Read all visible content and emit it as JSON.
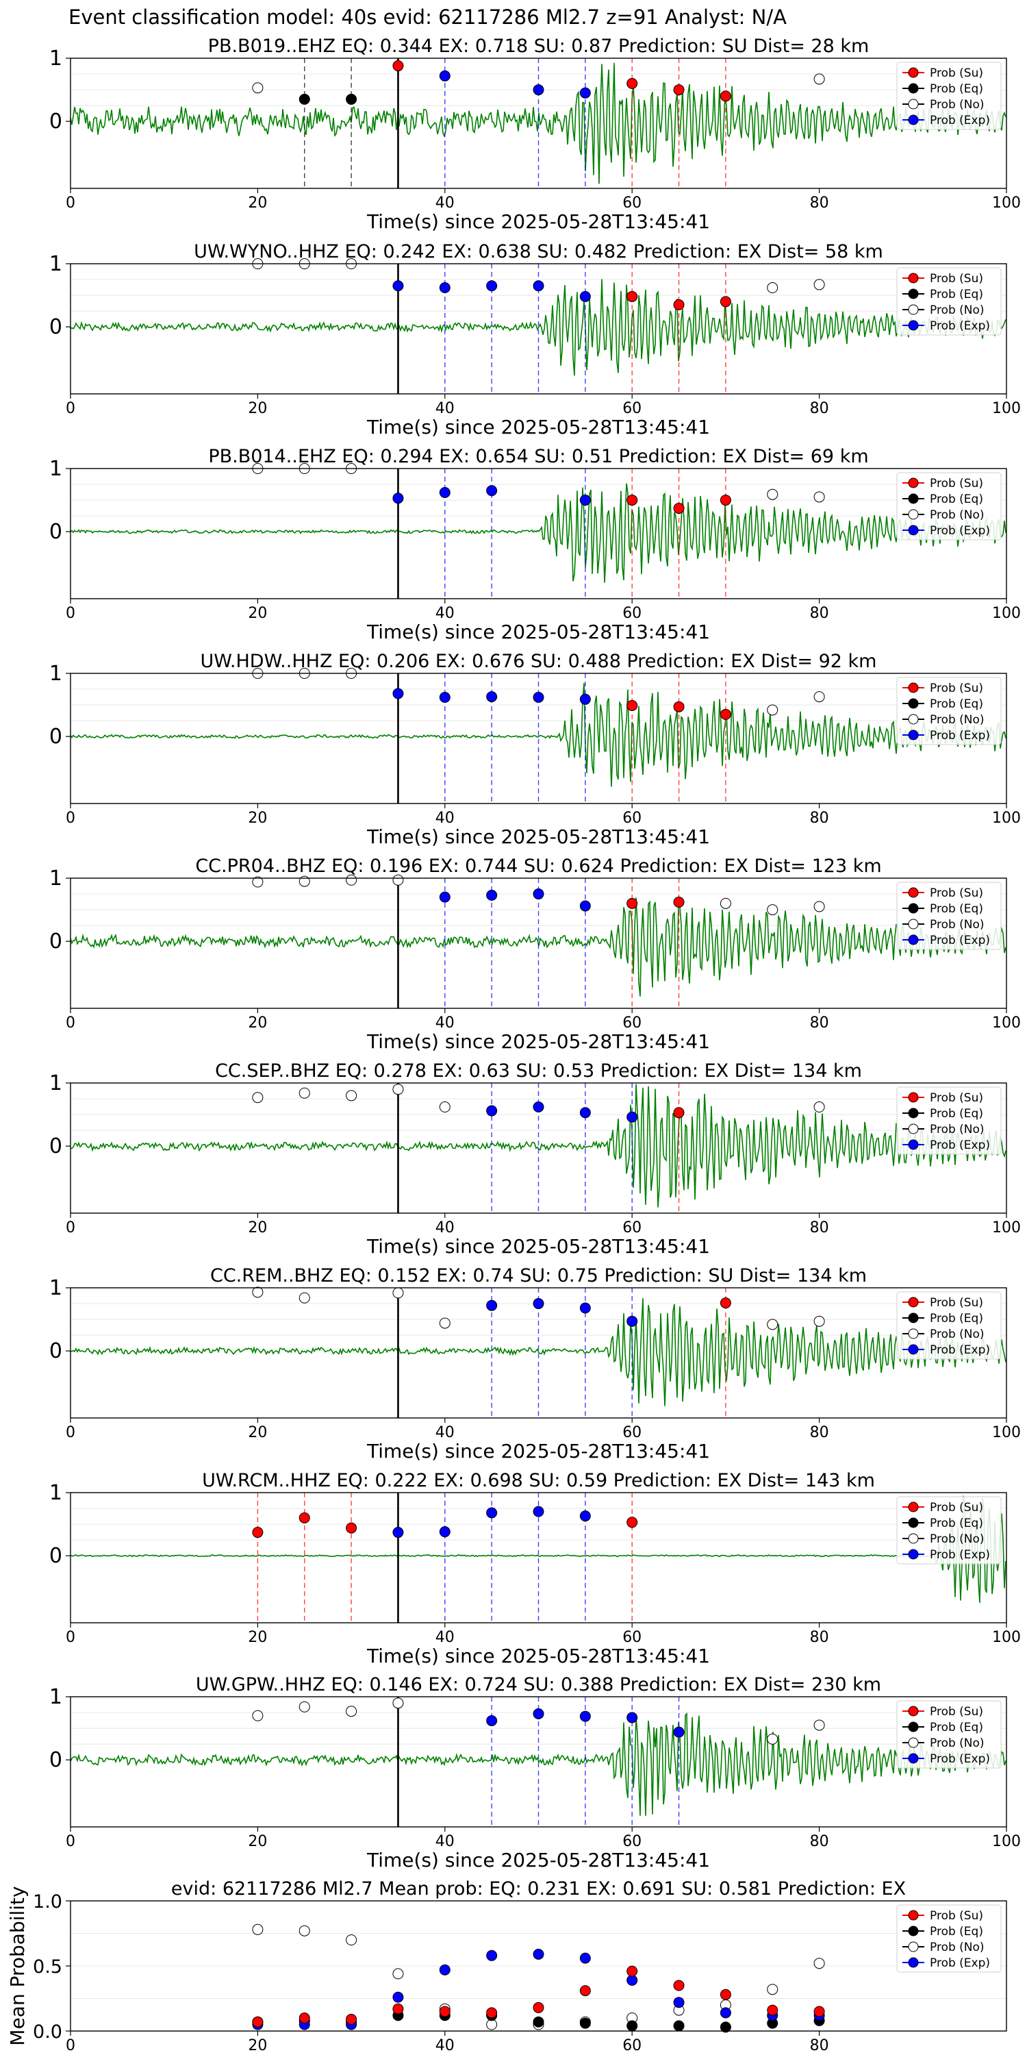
{
  "figure_title": "Event classification model: 40s evid: 62117286 Ml2.7 z=91 Analyst: N/A",
  "legend_entries": [
    {
      "label": "Prob (Su)",
      "color": "#ff0000",
      "fill": "#ff0000"
    },
    {
      "label": "Prob (Eq)",
      "color": "#000000",
      "fill": "#000000"
    },
    {
      "label": "Prob (No)",
      "color": "#000000",
      "fill": "#ffffff"
    },
    {
      "label": "Prob (Exp)",
      "color": "#0000ff",
      "fill": "#0000ff"
    }
  ],
  "colors": {
    "waveform": "#008000",
    "su": "#ff0000",
    "eq": "#000000",
    "no": "#ffffff",
    "exp": "#0000ff",
    "pick": "#000000"
  },
  "chart_data": [
    {
      "type": "line",
      "title": "PB.B019..EHZ   EQ: 0.344  EX: 0.718  SU: 0.87   Prediction: SU    Dist= 28 km",
      "xlabel": "Time(s) since 2025-05-28T13:45:41",
      "xlim": [
        0,
        100
      ],
      "xticks": [
        "0",
        "20",
        "40",
        "60",
        "80",
        "100"
      ],
      "yticks": [
        "0",
        "1"
      ],
      "pick": 35,
      "onset": 52,
      "amp": 0.9,
      "noise": 0.18,
      "su": [
        [
          60,
          0.6
        ],
        [
          65,
          0.5
        ],
        [
          70,
          0.4
        ],
        [
          35,
          0.88
        ]
      ],
      "eq": [
        [
          25,
          0.35
        ],
        [
          30,
          0.35
        ]
      ],
      "no": [
        [
          20,
          0.53
        ],
        [
          80,
          0.67
        ]
      ],
      "exp": [
        [
          40,
          0.72
        ],
        [
          50,
          0.5
        ],
        [
          55,
          0.45
        ]
      ],
      "vlines": [
        {
          "x": 25,
          "c": "eq"
        },
        {
          "x": 30,
          "c": "eq"
        },
        {
          "x": 40,
          "c": "exp"
        },
        {
          "x": 50,
          "c": "exp"
        },
        {
          "x": 55,
          "c": "exp"
        },
        {
          "x": 60,
          "c": "su"
        },
        {
          "x": 65,
          "c": "su"
        },
        {
          "x": 70,
          "c": "su"
        }
      ]
    },
    {
      "type": "line",
      "title": "UW.WYNO..HHZ   EQ: 0.242  EX: 0.638  SU: 0.482   Prediction: EX    Dist= 58 km",
      "xlabel": "Time(s) since 2025-05-28T13:45:41",
      "xlim": [
        0,
        100
      ],
      "xticks": [
        "0",
        "20",
        "40",
        "60",
        "80",
        "100"
      ],
      "yticks": [
        "0",
        "1"
      ],
      "pick": 35,
      "onset": 50,
      "amp": 0.8,
      "noise": 0.05,
      "su": [
        [
          60,
          0.48
        ],
        [
          65,
          0.35
        ],
        [
          70,
          0.4
        ]
      ],
      "eq": [],
      "no": [
        [
          20,
          1.0
        ],
        [
          25,
          1.0
        ],
        [
          30,
          1.0
        ],
        [
          75,
          0.62
        ],
        [
          80,
          0.67
        ]
      ],
      "exp": [
        [
          35,
          0.65
        ],
        [
          40,
          0.62
        ],
        [
          45,
          0.65
        ],
        [
          50,
          0.65
        ],
        [
          55,
          0.48
        ]
      ],
      "vlines": [
        {
          "x": 40,
          "c": "exp"
        },
        {
          "x": 45,
          "c": "exp"
        },
        {
          "x": 50,
          "c": "exp"
        },
        {
          "x": 55,
          "c": "exp"
        },
        {
          "x": 60,
          "c": "su"
        },
        {
          "x": 65,
          "c": "su"
        },
        {
          "x": 70,
          "c": "su"
        }
      ]
    },
    {
      "type": "line",
      "title": "PB.B014..EHZ   EQ: 0.294  EX: 0.654  SU: 0.51   Prediction: EX    Dist= 69 km",
      "xlabel": "Time(s) since 2025-05-28T13:45:41",
      "xlim": [
        0,
        100
      ],
      "xticks": [
        "0",
        "20",
        "40",
        "60",
        "80",
        "100"
      ],
      "yticks": [
        "0",
        "1"
      ],
      "pick": 35,
      "onset": 50,
      "amp": 0.9,
      "noise": 0.02,
      "su": [
        [
          60,
          0.5
        ],
        [
          65,
          0.37
        ],
        [
          70,
          0.5
        ]
      ],
      "eq": [],
      "no": [
        [
          20,
          1.0
        ],
        [
          25,
          1.0
        ],
        [
          30,
          1.0
        ],
        [
          75,
          0.59
        ],
        [
          80,
          0.55
        ]
      ],
      "exp": [
        [
          35,
          0.53
        ],
        [
          40,
          0.62
        ],
        [
          45,
          0.65
        ],
        [
          55,
          0.5
        ]
      ],
      "vlines": [
        {
          "x": 40,
          "c": "exp"
        },
        {
          "x": 45,
          "c": "exp"
        },
        {
          "x": 55,
          "c": "exp"
        },
        {
          "x": 60,
          "c": "su"
        },
        {
          "x": 65,
          "c": "su"
        },
        {
          "x": 70,
          "c": "su"
        }
      ]
    },
    {
      "type": "line",
      "title": "UW.HDW..HHZ   EQ: 0.206  EX: 0.676  SU: 0.488   Prediction: EX    Dist= 92 km",
      "xlabel": "Time(s) since 2025-05-28T13:45:41",
      "xlim": [
        0,
        100
      ],
      "xticks": [
        "0",
        "20",
        "40",
        "60",
        "80",
        "100"
      ],
      "yticks": [
        "0",
        "1"
      ],
      "pick": 35,
      "onset": 52,
      "amp": 0.9,
      "noise": 0.02,
      "su": [
        [
          60,
          0.49
        ],
        [
          65,
          0.47
        ],
        [
          70,
          0.35
        ]
      ],
      "eq": [],
      "no": [
        [
          20,
          1.0
        ],
        [
          25,
          1.0
        ],
        [
          30,
          1.0
        ],
        [
          75,
          0.42
        ],
        [
          80,
          0.63
        ]
      ],
      "exp": [
        [
          35,
          0.68
        ],
        [
          40,
          0.62
        ],
        [
          45,
          0.63
        ],
        [
          50,
          0.62
        ],
        [
          55,
          0.59
        ]
      ],
      "vlines": [
        {
          "x": 40,
          "c": "exp"
        },
        {
          "x": 45,
          "c": "exp"
        },
        {
          "x": 50,
          "c": "exp"
        },
        {
          "x": 55,
          "c": "exp"
        },
        {
          "x": 60,
          "c": "su"
        },
        {
          "x": 65,
          "c": "su"
        },
        {
          "x": 70,
          "c": "su"
        }
      ]
    },
    {
      "type": "line",
      "title": "CC.PR04..BHZ   EQ: 0.196  EX: 0.744  SU: 0.624   Prediction: EX    Dist= 123 km",
      "xlabel": "Time(s) since 2025-05-28T13:45:41",
      "xlim": [
        0,
        100
      ],
      "xticks": [
        "0",
        "20",
        "40",
        "60",
        "80",
        "100"
      ],
      "yticks": [
        "0",
        "1"
      ],
      "pick": 35,
      "onset": 57,
      "amp": 0.8,
      "noise": 0.07,
      "su": [
        [
          60,
          0.6
        ],
        [
          65,
          0.62
        ]
      ],
      "eq": [],
      "no": [
        [
          20,
          0.94
        ],
        [
          25,
          0.95
        ],
        [
          30,
          0.97
        ],
        [
          35,
          0.97
        ],
        [
          70,
          0.6
        ],
        [
          75,
          0.5
        ],
        [
          80,
          0.55
        ]
      ],
      "exp": [
        [
          40,
          0.7
        ],
        [
          45,
          0.73
        ],
        [
          50,
          0.75
        ],
        [
          55,
          0.56
        ]
      ],
      "vlines": [
        {
          "x": 40,
          "c": "exp"
        },
        {
          "x": 45,
          "c": "exp"
        },
        {
          "x": 50,
          "c": "exp"
        },
        {
          "x": 55,
          "c": "exp"
        },
        {
          "x": 60,
          "c": "su"
        },
        {
          "x": 65,
          "c": "su"
        }
      ]
    },
    {
      "type": "line",
      "title": "CC.SEP..BHZ   EQ: 0.278  EX: 0.63  SU: 0.53   Prediction: EX    Dist= 134 km",
      "xlabel": "Time(s) since 2025-05-28T13:45:41",
      "xlim": [
        0,
        100
      ],
      "xticks": [
        "0",
        "20",
        "40",
        "60",
        "80",
        "100"
      ],
      "yticks": [
        "0",
        "1"
      ],
      "pick": 35,
      "onset": 57,
      "amp": 1.0,
      "noise": 0.05,
      "su": [
        [
          65,
          0.53
        ]
      ],
      "eq": [],
      "no": [
        [
          20,
          0.77
        ],
        [
          25,
          0.84
        ],
        [
          30,
          0.8
        ],
        [
          35,
          0.9
        ],
        [
          40,
          0.62
        ],
        [
          80,
          0.62
        ]
      ],
      "exp": [
        [
          45,
          0.56
        ],
        [
          50,
          0.62
        ],
        [
          55,
          0.53
        ],
        [
          60,
          0.46
        ]
      ],
      "vlines": [
        {
          "x": 45,
          "c": "exp"
        },
        {
          "x": 50,
          "c": "exp"
        },
        {
          "x": 55,
          "c": "exp"
        },
        {
          "x": 60,
          "c": "exp"
        },
        {
          "x": 65,
          "c": "su"
        }
      ]
    },
    {
      "type": "line",
      "title": "CC.REM..BHZ   EQ: 0.152  EX: 0.74  SU: 0.75   Prediction: SU    Dist= 134 km",
      "xlabel": "Time(s) since 2025-05-28T13:45:41",
      "xlim": [
        0,
        100
      ],
      "xticks": [
        "0",
        "20",
        "40",
        "60",
        "80",
        "100"
      ],
      "yticks": [
        "0",
        "1"
      ],
      "pick": 35,
      "onset": 57,
      "amp": 0.9,
      "noise": 0.04,
      "su": [
        [
          70,
          0.76
        ]
      ],
      "eq": [],
      "no": [
        [
          20,
          0.93
        ],
        [
          25,
          0.84
        ],
        [
          35,
          0.92
        ],
        [
          40,
          0.44
        ],
        [
          75,
          0.42
        ],
        [
          80,
          0.47
        ]
      ],
      "exp": [
        [
          45,
          0.72
        ],
        [
          50,
          0.75
        ],
        [
          55,
          0.68
        ],
        [
          60,
          0.47
        ]
      ],
      "vlines": [
        {
          "x": 45,
          "c": "exp"
        },
        {
          "x": 50,
          "c": "exp"
        },
        {
          "x": 55,
          "c": "exp"
        },
        {
          "x": 60,
          "c": "exp"
        },
        {
          "x": 70,
          "c": "su"
        }
      ]
    },
    {
      "type": "line",
      "title": "UW.RCM..HHZ   EQ: 0.222  EX: 0.698  SU: 0.59   Prediction: EX    Dist= 143 km",
      "xlabel": "Time(s) since 2025-05-28T13:45:41",
      "xlim": [
        0,
        100
      ],
      "xticks": [
        "0",
        "20",
        "40",
        "60",
        "80",
        "100"
      ],
      "yticks": [
        "0",
        "1"
      ],
      "pick": 35,
      "onset": 92,
      "amp": 0.9,
      "noise": 0.01,
      "su": [
        [
          20,
          0.37
        ],
        [
          25,
          0.6
        ],
        [
          30,
          0.44
        ],
        [
          60,
          0.53
        ]
      ],
      "eq": [],
      "no": [],
      "exp": [
        [
          35,
          0.37
        ],
        [
          40,
          0.38
        ],
        [
          45,
          0.68
        ],
        [
          50,
          0.7
        ],
        [
          55,
          0.63
        ]
      ],
      "vlines": [
        {
          "x": 20,
          "c": "su"
        },
        {
          "x": 25,
          "c": "su"
        },
        {
          "x": 30,
          "c": "su"
        },
        {
          "x": 40,
          "c": "exp"
        },
        {
          "x": 45,
          "c": "exp"
        },
        {
          "x": 50,
          "c": "exp"
        },
        {
          "x": 55,
          "c": "exp"
        },
        {
          "x": 60,
          "c": "su"
        }
      ]
    },
    {
      "type": "line",
      "title": "UW.GPW..HHZ   EQ: 0.146  EX: 0.724  SU: 0.388   Prediction: EX    Dist= 230 km",
      "xlabel": "Time(s) since 2025-05-28T13:45:41",
      "xlim": [
        0,
        100
      ],
      "xticks": [
        "0",
        "20",
        "40",
        "60",
        "80",
        "100"
      ],
      "yticks": [
        "0",
        "1"
      ],
      "pick": 35,
      "onset": 57,
      "amp": 0.8,
      "noise": 0.06,
      "su": [],
      "eq": [],
      "no": [
        [
          20,
          0.7
        ],
        [
          25,
          0.84
        ],
        [
          30,
          0.77
        ],
        [
          35,
          0.9
        ],
        [
          75,
          0.33
        ],
        [
          80,
          0.55
        ]
      ],
      "exp": [
        [
          45,
          0.62
        ],
        [
          50,
          0.73
        ],
        [
          55,
          0.69
        ],
        [
          60,
          0.67
        ],
        [
          65,
          0.44
        ]
      ],
      "vlines": [
        {
          "x": 45,
          "c": "exp"
        },
        {
          "x": 50,
          "c": "exp"
        },
        {
          "x": 55,
          "c": "exp"
        },
        {
          "x": 60,
          "c": "exp"
        },
        {
          "x": 65,
          "c": "exp"
        }
      ]
    },
    {
      "type": "scatter",
      "title": "evid: 62117286   Ml2.7    Mean prob:    EQ: 0.231   EX: 0.691   SU: 0.581    Prediction: EX",
      "ylabel": "Mean Probability",
      "xlim": [
        0,
        100
      ],
      "ylim": [
        0,
        1
      ],
      "xticks": [
        "0",
        "20",
        "40",
        "60",
        "80"
      ],
      "yticks": [
        "0.0",
        "0.5",
        "1.0"
      ],
      "su": [
        [
          20,
          0.07
        ],
        [
          25,
          0.1
        ],
        [
          30,
          0.09
        ],
        [
          35,
          0.17
        ],
        [
          40,
          0.15
        ],
        [
          45,
          0.14
        ],
        [
          50,
          0.18
        ],
        [
          55,
          0.31
        ],
        [
          60,
          0.46
        ],
        [
          65,
          0.35
        ],
        [
          70,
          0.28
        ],
        [
          75,
          0.16
        ],
        [
          80,
          0.15
        ]
      ],
      "eq": [
        [
          20,
          0.07
        ],
        [
          25,
          0.08
        ],
        [
          30,
          0.07
        ],
        [
          35,
          0.12
        ],
        [
          40,
          0.12
        ],
        [
          45,
          0.12
        ],
        [
          50,
          0.07
        ],
        [
          55,
          0.06
        ],
        [
          60,
          0.04
        ],
        [
          65,
          0.04
        ],
        [
          70,
          0.03
        ],
        [
          75,
          0.06
        ],
        [
          80,
          0.08
        ]
      ],
      "no": [
        [
          20,
          0.78
        ],
        [
          25,
          0.77
        ],
        [
          30,
          0.7
        ],
        [
          35,
          0.44
        ],
        [
          40,
          0.17
        ],
        [
          45,
          0.05
        ],
        [
          50,
          0.05
        ],
        [
          55,
          0.07
        ],
        [
          60,
          0.1
        ],
        [
          65,
          0.16
        ],
        [
          70,
          0.2
        ],
        [
          75,
          0.32
        ],
        [
          80,
          0.52
        ]
      ],
      "exp": [
        [
          20,
          0.05
        ],
        [
          25,
          0.05
        ],
        [
          30,
          0.05
        ],
        [
          35,
          0.26
        ],
        [
          40,
          0.47
        ],
        [
          45,
          0.58
        ],
        [
          50,
          0.59
        ],
        [
          55,
          0.56
        ],
        [
          60,
          0.39
        ],
        [
          65,
          0.22
        ],
        [
          70,
          0.14
        ],
        [
          75,
          0.12
        ],
        [
          80,
          0.12
        ]
      ]
    }
  ]
}
